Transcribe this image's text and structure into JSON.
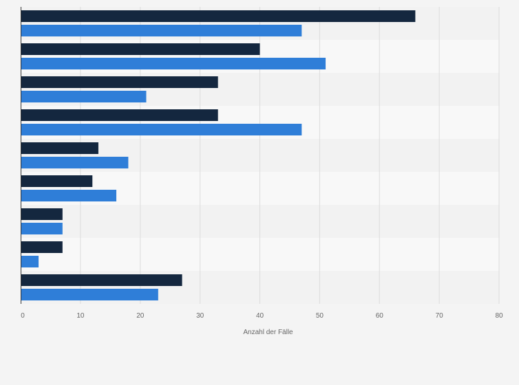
{
  "chart_data": {
    "type": "bar",
    "orientation": "horizontal",
    "categories": [
      "",
      "",
      "",
      "",
      "",
      "",
      "",
      "",
      ""
    ],
    "series": [
      {
        "values": [
          66,
          40,
          33,
          33,
          13,
          12,
          7,
          7,
          27
        ]
      },
      {
        "values": [
          47,
          51,
          21,
          47,
          18,
          16,
          7,
          3,
          23
        ]
      }
    ],
    "xlabel": "Anzahl der Fälle",
    "ylabel": "",
    "xlim": [
      0,
      80
    ],
    "xticks": [
      0,
      10,
      20,
      30,
      40,
      50,
      60,
      70,
      80
    ],
    "grid": true,
    "colors": {
      "series_1": "#14273f",
      "series_2": "#2f7ed8",
      "band_dark": "#f2f2f2",
      "band_light": "#f8f8f8",
      "gridline": "#dcdcdc",
      "axis": "#333333"
    }
  }
}
